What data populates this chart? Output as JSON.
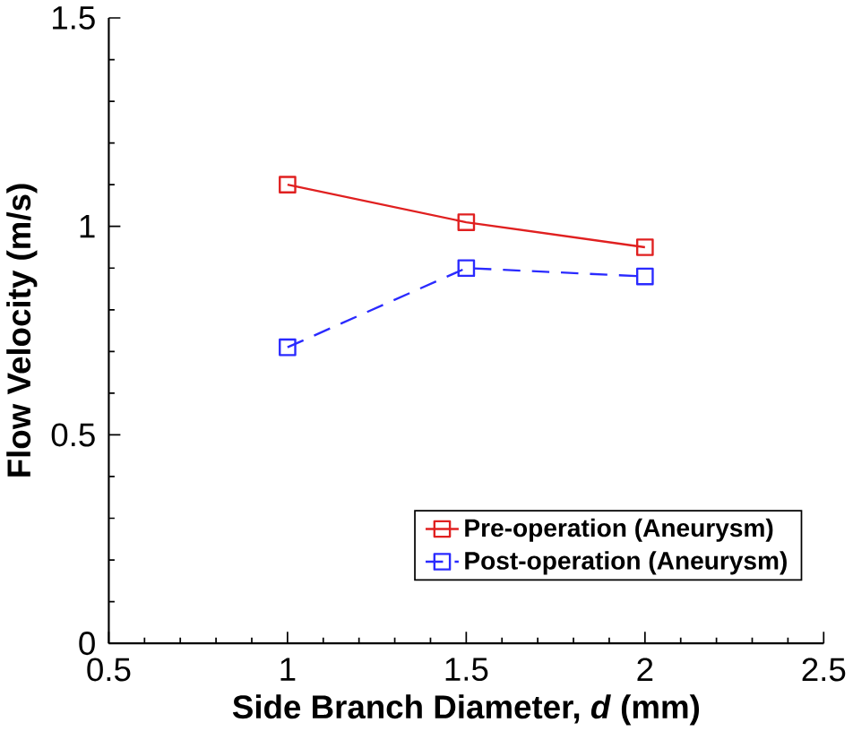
{
  "chart_data": {
    "type": "line",
    "xlabel": "Side Branch Diameter, *d* (mm)",
    "ylabel": "Flow Velocity (m/s)",
    "x": [
      1,
      1.5,
      2
    ],
    "series": [
      {
        "name": "Pre-operation (Aneurysm)",
        "color": "#e02020",
        "values": [
          1.1,
          1.01,
          0.95
        ],
        "marker": "square",
        "line_style": "solid"
      },
      {
        "name": "Post-operation (Aneurysm)",
        "color": "#2a2aff",
        "values": [
          0.71,
          0.9,
          0.88
        ],
        "marker": "square",
        "line_style": "dashed"
      }
    ],
    "xlim": [
      0.5,
      2.5
    ],
    "xticks": [
      0.5,
      1,
      1.5,
      2,
      2.5
    ],
    "ylim": [
      0,
      1.5
    ],
    "yticks": [
      0,
      0.5,
      1,
      1.5
    ],
    "grid": false,
    "legend": "bottom right"
  }
}
